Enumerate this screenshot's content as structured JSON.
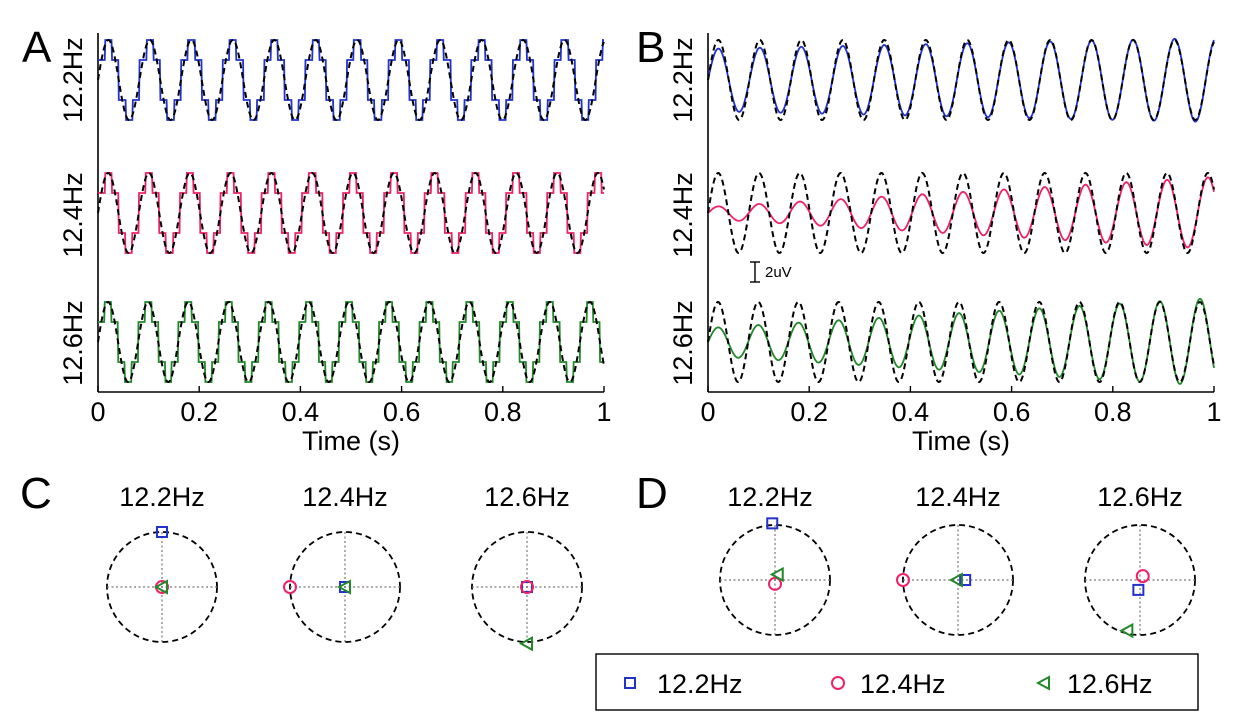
{
  "colors": {
    "f122": "#2233cc",
    "f124": "#ee2266",
    "f126": "#22882a",
    "reference": "#000000"
  },
  "chart_data": [
    {
      "type": "line",
      "panel": "A",
      "xlabel": "Time (s)",
      "xlim": [
        0,
        1
      ],
      "xticks": [
        "0",
        "0.2",
        "0.4",
        "0.6",
        "0.8",
        "1"
      ],
      "series": [
        {
          "name": "12.2Hz",
          "frequency_hz": 12.2,
          "phase_rad": 0.0,
          "waveform": "stepped"
        },
        {
          "name": "12.4Hz",
          "frequency_hz": 12.4,
          "phase_rad": 0.0,
          "waveform": "stepped"
        },
        {
          "name": "12.6Hz",
          "frequency_hz": 12.6,
          "phase_rad": 0.0,
          "waveform": "stepped"
        }
      ]
    },
    {
      "type": "line",
      "panel": "B",
      "xlabel": "Time (s)",
      "xlim": [
        0,
        1
      ],
      "xticks": [
        "0",
        "0.2",
        "0.4",
        "0.6",
        "0.8",
        "1"
      ],
      "scale_bar": "2uV",
      "series": [
        {
          "name": "12.2Hz",
          "frequency_hz": 12.2,
          "phase_rad": 0.0,
          "amp_start": 0.78,
          "amp_end": 1.05
        },
        {
          "name": "12.4Hz",
          "frequency_hz": 12.4,
          "phase_rad": 0.0,
          "amp_start": 0.15,
          "amp_end": 0.9
        },
        {
          "name": "12.6Hz",
          "frequency_hz": 12.6,
          "phase_rad": 0.0,
          "amp_start": 0.35,
          "amp_end": 1.1
        }
      ]
    },
    {
      "type": "scatter",
      "panel": "C",
      "subplots": [
        {
          "title": "12.2Hz",
          "points": [
            {
              "series": "12.2Hz",
              "x": 0.0,
              "y": 1.0
            },
            {
              "series": "12.4Hz",
              "x": 0.0,
              "y": 0.0
            },
            {
              "series": "12.6Hz",
              "x": 0.0,
              "y": 0.0
            }
          ]
        },
        {
          "title": "12.4Hz",
          "points": [
            {
              "series": "12.2Hz",
              "x": 0.0,
              "y": 0.0
            },
            {
              "series": "12.4Hz",
              "x": -1.0,
              "y": 0.0
            },
            {
              "series": "12.6Hz",
              "x": 0.0,
              "y": 0.0
            }
          ]
        },
        {
          "title": "12.6Hz",
          "points": [
            {
              "series": "12.2Hz",
              "x": 0.0,
              "y": 0.0
            },
            {
              "series": "12.4Hz",
              "x": 0.0,
              "y": 0.0
            },
            {
              "series": "12.6Hz",
              "x": 0.0,
              "y": -1.03
            }
          ]
        }
      ]
    },
    {
      "type": "scatter",
      "panel": "D",
      "subplots": [
        {
          "title": "12.2Hz",
          "points": [
            {
              "series": "12.2Hz",
              "x": -0.05,
              "y": 1.03
            },
            {
              "series": "12.4Hz",
              "x": 0.0,
              "y": -0.07
            },
            {
              "series": "12.6Hz",
              "x": 0.05,
              "y": 0.1
            }
          ]
        },
        {
          "title": "12.4Hz",
          "points": [
            {
              "series": "12.2Hz",
              "x": 0.13,
              "y": 0.0
            },
            {
              "series": "12.4Hz",
              "x": -1.0,
              "y": 0.0
            },
            {
              "series": "12.6Hz",
              "x": -0.02,
              "y": 0.0
            }
          ]
        },
        {
          "title": "12.6Hz",
          "points": [
            {
              "series": "12.2Hz",
              "x": -0.03,
              "y": -0.18
            },
            {
              "series": "12.4Hz",
              "x": 0.05,
              "y": 0.07
            },
            {
              "series": "12.6Hz",
              "x": -0.23,
              "y": -0.92
            }
          ]
        }
      ]
    }
  ],
  "panels": {
    "A": {
      "letter": "A",
      "row_labels": [
        "12.2Hz",
        "12.4Hz",
        "12.6Hz"
      ]
    },
    "B": {
      "letter": "B",
      "row_labels": [
        "12.2Hz",
        "12.4Hz",
        "12.6Hz"
      ]
    },
    "C": {
      "letter": "C"
    },
    "D": {
      "letter": "D"
    }
  },
  "legend": {
    "placement": "bottom-right",
    "entries": [
      {
        "label": "12.2Hz",
        "marker": "square"
      },
      {
        "label": "12.4Hz",
        "marker": "circle"
      },
      {
        "label": "12.6Hz",
        "marker": "triangle-left"
      }
    ]
  }
}
